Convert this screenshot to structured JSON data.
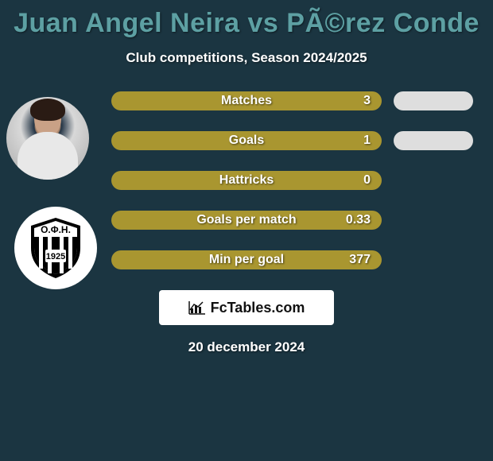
{
  "title": "Juan Angel Neira vs PÃ©rez Conde",
  "subtitle": "Club competitions, Season 2024/2025",
  "date": "20 december 2024",
  "footer_brand": "FcTables.com",
  "colors": {
    "background": "#1b3541",
    "pill_primary": "#a99630",
    "pill_secondary": "#dedede",
    "title_color": "#5da0a3",
    "text": "#ffffff",
    "shield_bg": "#ffffff",
    "shield_fill": "#000000"
  },
  "club": {
    "top_text": "Ο.Φ.Η.",
    "year": "1925"
  },
  "stats": [
    {
      "label": "Matches",
      "left_value": "3",
      "right_pill": true
    },
    {
      "label": "Goals",
      "left_value": "1",
      "right_pill": true
    },
    {
      "label": "Hattricks",
      "left_value": "0",
      "right_pill": false
    },
    {
      "label": "Goals per match",
      "left_value": "0.33",
      "right_pill": false
    },
    {
      "label": "Min per goal",
      "left_value": "377",
      "right_pill": false
    }
  ]
}
